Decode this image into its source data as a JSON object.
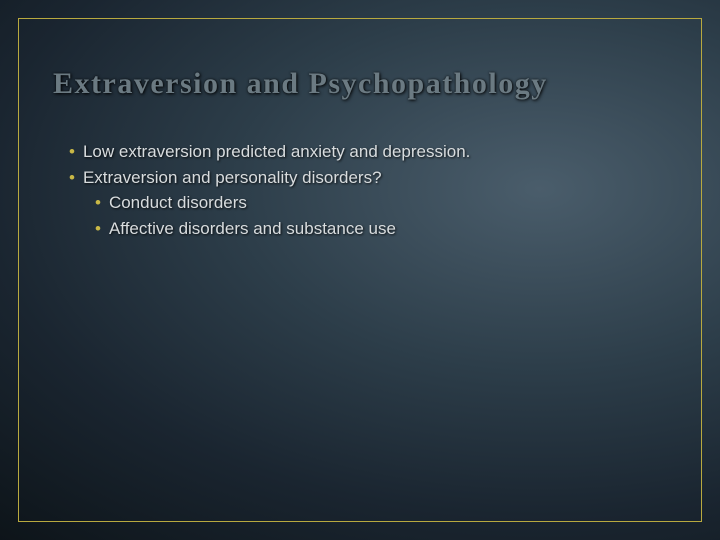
{
  "slide": {
    "title": "Extraversion and Psychopathology",
    "title_color": "#6b7a82",
    "title_fontsize": 30,
    "title_weight": "bold",
    "border_color": "#b8a93f",
    "bullet_color": "#c9b846",
    "text_color": "#d8dcde",
    "body_fontsize": 17,
    "bullets": [
      {
        "level": 1,
        "text": "Low extraversion predicted anxiety and depression."
      },
      {
        "level": 1,
        "text": "Extraversion and personality disorders?"
      },
      {
        "level": 2,
        "text": "Conduct disorders"
      },
      {
        "level": 2,
        "text": "Affective disorders and substance use"
      }
    ]
  }
}
